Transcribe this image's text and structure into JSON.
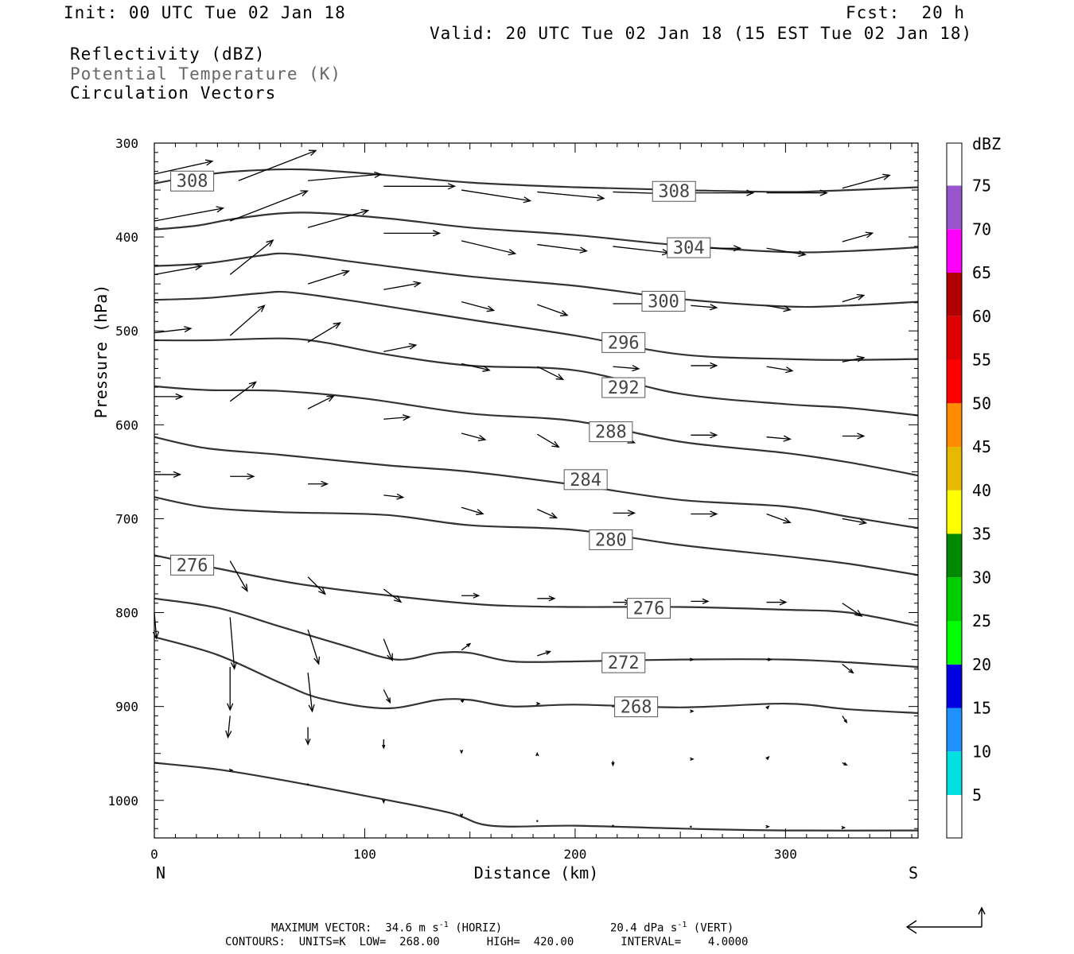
{
  "header": {
    "init": "Init: 00 UTC Tue 02 Jan 18",
    "fcst": "Fcst:  20 h",
    "valid": "Valid: 20 UTC Tue 02 Jan 18 (15 EST Tue 02 Jan 18)",
    "fields": [
      "Reflectivity (dBZ)",
      "Potential Temperature (K)",
      "Circulation Vectors"
    ]
  },
  "colors": {
    "contour": "#333333",
    "legend_field_gray": "#666666",
    "colorbar": [
      "#ffffff",
      "#00e0e0",
      "#1e90ff",
      "#0000e0",
      "#00ff00",
      "#00cc00",
      "#008800",
      "#ffff00",
      "#e6b800",
      "#ff8c00",
      "#ff0000",
      "#dd0000",
      "#b00000",
      "#ff00ff",
      "#9955cc",
      "#ffffff"
    ]
  },
  "footer": {
    "max_vector": "MAXIMUM VECTOR:  34.6 m s",
    "horiz": "(HORIZ)",
    "vert_val": "20.4 dPa s",
    "vert": "(VERT)",
    "contours": "CONTOURS:  UNITS=K  LOW=  268.00       HIGH=  420.00       INTERVAL=    4.0000"
  },
  "chart_data": {
    "type": "cross-section",
    "xlabel": "Distance (km)",
    "ylabel": "Pressure (hPa)",
    "xlim": [
      0,
      363
    ],
    "ylim": [
      300,
      1040
    ],
    "x_ticks": [
      0,
      100,
      200,
      300
    ],
    "y_ticks": [
      300,
      400,
      500,
      600,
      700,
      800,
      900,
      1000
    ],
    "left_label": "N",
    "right_label": "S",
    "colorbar": {
      "unit": "dBZ",
      "levels": [
        5,
        10,
        15,
        20,
        25,
        30,
        35,
        40,
        45,
        50,
        55,
        60,
        65,
        70,
        75
      ]
    },
    "contour_labels": [
      {
        "value": "308",
        "x": 18,
        "p": 340
      },
      {
        "value": "308",
        "x": 247,
        "p": 351
      },
      {
        "value": "304",
        "x": 254,
        "p": 411
      },
      {
        "value": "300",
        "x": 242,
        "p": 468
      },
      {
        "value": "296",
        "x": 223,
        "p": 512
      },
      {
        "value": "292",
        "x": 223,
        "p": 560
      },
      {
        "value": "288",
        "x": 217,
        "p": 607
      },
      {
        "value": "284",
        "x": 205,
        "p": 658
      },
      {
        "value": "280",
        "x": 217,
        "p": 722
      },
      {
        "value": "276",
        "x": 18,
        "p": 749
      },
      {
        "value": "276",
        "x": 235,
        "p": 795
      },
      {
        "value": "272",
        "x": 223,
        "p": 853
      },
      {
        "value": "268",
        "x": 229,
        "p": 900
      }
    ],
    "isentropes": [
      {
        "points": [
          [
            0,
            343
          ],
          [
            20,
            335
          ],
          [
            40,
            330
          ],
          [
            70,
            328
          ],
          [
            110,
            334
          ],
          [
            150,
            342
          ],
          [
            200,
            347
          ],
          [
            250,
            350
          ],
          [
            300,
            352
          ],
          [
            330,
            350
          ],
          [
            363,
            347
          ]
        ]
      },
      {
        "points": [
          [
            0,
            392
          ],
          [
            20,
            388
          ],
          [
            40,
            380
          ],
          [
            70,
            374
          ],
          [
            110,
            380
          ],
          [
            150,
            390
          ],
          [
            200,
            398
          ],
          [
            250,
            409
          ],
          [
            300,
            416
          ],
          [
            330,
            415
          ],
          [
            363,
            411
          ]
        ]
      },
      {
        "points": [
          [
            0,
            431
          ],
          [
            25,
            428
          ],
          [
            50,
            420
          ],
          [
            65,
            418
          ],
          [
            100,
            428
          ],
          [
            150,
            442
          ],
          [
            200,
            452
          ],
          [
            250,
            466
          ],
          [
            300,
            474
          ],
          [
            330,
            473
          ],
          [
            363,
            469
          ]
        ]
      },
      {
        "points": [
          [
            0,
            467
          ],
          [
            25,
            465
          ],
          [
            50,
            460
          ],
          [
            65,
            459
          ],
          [
            100,
            470
          ],
          [
            150,
            488
          ],
          [
            200,
            505
          ],
          [
            250,
            525
          ],
          [
            300,
            530
          ],
          [
            330,
            531
          ],
          [
            363,
            530
          ]
        ]
      },
      {
        "points": [
          [
            0,
            510
          ],
          [
            25,
            510
          ],
          [
            60,
            508
          ],
          [
            80,
            512
          ],
          [
            110,
            525
          ],
          [
            150,
            537
          ],
          [
            200,
            542
          ],
          [
            250,
            567
          ],
          [
            300,
            578
          ],
          [
            330,
            582
          ],
          [
            363,
            590
          ]
        ]
      },
      {
        "points": [
          [
            0,
            559
          ],
          [
            25,
            563
          ],
          [
            60,
            564
          ],
          [
            100,
            572
          ],
          [
            150,
            588
          ],
          [
            200,
            596
          ],
          [
            250,
            618
          ],
          [
            300,
            630
          ],
          [
            330,
            640
          ],
          [
            363,
            654
          ]
        ]
      },
      {
        "points": [
          [
            0,
            613
          ],
          [
            25,
            625
          ],
          [
            60,
            632
          ],
          [
            110,
            643
          ],
          [
            150,
            650
          ],
          [
            200,
            664
          ],
          [
            250,
            680
          ],
          [
            300,
            687
          ],
          [
            330,
            698
          ],
          [
            363,
            710
          ]
        ]
      },
      {
        "points": [
          [
            0,
            677
          ],
          [
            25,
            688
          ],
          [
            60,
            693
          ],
          [
            110,
            696
          ],
          [
            150,
            707
          ],
          [
            200,
            712
          ],
          [
            250,
            728
          ],
          [
            300,
            740
          ],
          [
            330,
            748
          ],
          [
            363,
            760
          ]
        ]
      },
      {
        "points": [
          [
            0,
            739
          ],
          [
            30,
            753
          ],
          [
            70,
            770
          ],
          [
            120,
            784
          ],
          [
            160,
            792
          ],
          [
            200,
            794
          ],
          [
            250,
            794
          ],
          [
            300,
            797
          ],
          [
            330,
            800
          ],
          [
            363,
            814
          ]
        ]
      },
      {
        "points": [
          [
            0,
            785
          ],
          [
            30,
            795
          ],
          [
            60,
            815
          ],
          [
            90,
            835
          ],
          [
            115,
            850
          ],
          [
            135,
            843
          ],
          [
            150,
            843
          ],
          [
            170,
            852
          ],
          [
            200,
            852
          ],
          [
            250,
            850
          ],
          [
            300,
            850
          ],
          [
            330,
            853
          ],
          [
            363,
            858
          ]
        ]
      },
      {
        "points": [
          [
            0,
            826
          ],
          [
            30,
            845
          ],
          [
            60,
            875
          ],
          [
            80,
            892
          ],
          [
            110,
            902
          ],
          [
            135,
            893
          ],
          [
            150,
            893
          ],
          [
            170,
            900
          ],
          [
            200,
            898
          ],
          [
            250,
            901
          ],
          [
            300,
            897
          ],
          [
            330,
            903
          ],
          [
            363,
            907
          ]
        ]
      },
      {
        "points": [
          [
            0,
            960
          ],
          [
            30,
            967
          ],
          [
            60,
            978
          ],
          [
            100,
            995
          ],
          [
            140,
            1013
          ],
          [
            160,
            1027
          ],
          [
            200,
            1027
          ],
          [
            250,
            1030
          ],
          [
            300,
            1032
          ],
          [
            363,
            1032
          ]
        ]
      }
    ],
    "vectors": [
      {
        "x": 0,
        "p": 333,
        "u": 27,
        "w": -6
      },
      {
        "x": 40,
        "p": 340,
        "u": 36,
        "w": -14
      },
      {
        "x": 73,
        "p": 340,
        "u": 34,
        "w": -3
      },
      {
        "x": 109,
        "p": 346,
        "u": 33,
        "w": 0
      },
      {
        "x": 146,
        "p": 350,
        "u": 32,
        "w": 5
      },
      {
        "x": 182,
        "p": 352,
        "u": 31,
        "w": 3
      },
      {
        "x": 218,
        "p": 352,
        "u": 30,
        "w": 1
      },
      {
        "x": 255,
        "p": 353,
        "u": 29,
        "w": 0
      },
      {
        "x": 291,
        "p": 353,
        "u": 28,
        "w": 0
      },
      {
        "x": 327,
        "p": 348,
        "u": 22,
        "w": -6
      },
      {
        "x": 0,
        "p": 383,
        "u": 32,
        "w": -6
      },
      {
        "x": 36,
        "p": 383,
        "u": 36,
        "w": -14
      },
      {
        "x": 73,
        "p": 390,
        "u": 28,
        "w": -8
      },
      {
        "x": 109,
        "p": 396,
        "u": 26,
        "w": 0
      },
      {
        "x": 146,
        "p": 404,
        "u": 25,
        "w": 6
      },
      {
        "x": 182,
        "p": 408,
        "u": 23,
        "w": 3
      },
      {
        "x": 218,
        "p": 410,
        "u": 26,
        "w": 3
      },
      {
        "x": 255,
        "p": 412,
        "u": 23,
        "w": 0
      },
      {
        "x": 291,
        "p": 412,
        "u": 18,
        "w": 3
      },
      {
        "x": 327,
        "p": 405,
        "u": 14,
        "w": -4
      },
      {
        "x": 0,
        "p": 440,
        "u": 22,
        "w": -4
      },
      {
        "x": 36,
        "p": 440,
        "u": 20,
        "w": -16
      },
      {
        "x": 73,
        "p": 450,
        "u": 19,
        "w": -6
      },
      {
        "x": 109,
        "p": 456,
        "u": 17,
        "w": -3
      },
      {
        "x": 146,
        "p": 469,
        "u": 15,
        "w": 4
      },
      {
        "x": 182,
        "p": 472,
        "u": 14,
        "w": 5
      },
      {
        "x": 218,
        "p": 471,
        "u": 18,
        "w": 0
      },
      {
        "x": 255,
        "p": 473,
        "u": 12,
        "w": 1
      },
      {
        "x": 291,
        "p": 473,
        "u": 11,
        "w": 2
      },
      {
        "x": 327,
        "p": 469,
        "u": 10,
        "w": -3
      },
      {
        "x": 0,
        "p": 502,
        "u": 17,
        "w": -2
      },
      {
        "x": 36,
        "p": 505,
        "u": 16,
        "w": -14
      },
      {
        "x": 73,
        "p": 512,
        "u": 15,
        "w": -9
      },
      {
        "x": 109,
        "p": 522,
        "u": 15,
        "w": -3
      },
      {
        "x": 146,
        "p": 535,
        "u": 13,
        "w": 3
      },
      {
        "x": 182,
        "p": 538,
        "u": 12,
        "w": 6
      },
      {
        "x": 218,
        "p": 538,
        "u": 12,
        "w": 1
      },
      {
        "x": 255,
        "p": 537,
        "u": 12,
        "w": 0
      },
      {
        "x": 291,
        "p": 538,
        "u": 12,
        "w": 2
      },
      {
        "x": 327,
        "p": 533,
        "u": 10,
        "w": -2
      },
      {
        "x": 0,
        "p": 570,
        "u": 13,
        "w": 0
      },
      {
        "x": 36,
        "p": 575,
        "u": 12,
        "w": -9
      },
      {
        "x": 73,
        "p": 583,
        "u": 12,
        "w": -6
      },
      {
        "x": 109,
        "p": 594,
        "u": 12,
        "w": -1
      },
      {
        "x": 146,
        "p": 609,
        "u": 11,
        "w": 3
      },
      {
        "x": 182,
        "p": 610,
        "u": 10,
        "w": 6
      },
      {
        "x": 218,
        "p": 610,
        "u": 10,
        "w": 4
      },
      {
        "x": 255,
        "p": 611,
        "u": 12,
        "w": 0
      },
      {
        "x": 291,
        "p": 613,
        "u": 11,
        "w": 1
      },
      {
        "x": 327,
        "p": 612,
        "u": 10,
        "w": 0
      },
      {
        "x": 0,
        "p": 653,
        "u": 12,
        "w": 0
      },
      {
        "x": 36,
        "p": 655,
        "u": 11,
        "w": 0
      },
      {
        "x": 73,
        "p": 663,
        "u": 9,
        "w": 0
      },
      {
        "x": 109,
        "p": 675,
        "u": 9,
        "w": 1
      },
      {
        "x": 146,
        "p": 688,
        "u": 10,
        "w": 3
      },
      {
        "x": 182,
        "p": 690,
        "u": 9,
        "w": 4
      },
      {
        "x": 218,
        "p": 694,
        "u": 10,
        "w": 0
      },
      {
        "x": 255,
        "p": 695,
        "u": 12,
        "w": 0
      },
      {
        "x": 291,
        "p": 695,
        "u": 11,
        "w": 4
      },
      {
        "x": 327,
        "p": 700,
        "u": 11,
        "w": 2
      },
      {
        "x": 36,
        "p": 745,
        "u": 8,
        "w": 14
      },
      {
        "x": 73,
        "p": 762,
        "u": 8,
        "w": 8
      },
      {
        "x": 109,
        "p": 775,
        "u": 8,
        "w": 6
      },
      {
        "x": 146,
        "p": 782,
        "u": 8,
        "w": 0
      },
      {
        "x": 182,
        "p": 785,
        "u": 8,
        "w": 0
      },
      {
        "x": 218,
        "p": 789,
        "u": 8,
        "w": 0
      },
      {
        "x": 255,
        "p": 788,
        "u": 8,
        "w": 0
      },
      {
        "x": 291,
        "p": 789,
        "u": 9,
        "w": 0
      },
      {
        "x": 327,
        "p": 790,
        "u": 9,
        "w": 6
      },
      {
        "x": 0,
        "p": 800,
        "u": 1,
        "w": 12
      },
      {
        "x": 36,
        "p": 805,
        "u": 2,
        "w": 24
      },
      {
        "x": 73,
        "p": 818,
        "u": 5,
        "w": 16
      },
      {
        "x": 109,
        "p": 828,
        "u": 4,
        "w": 10
      },
      {
        "x": 146,
        "p": 840,
        "u": 4,
        "w": -3
      },
      {
        "x": 182,
        "p": 846,
        "u": 6,
        "w": -2
      },
      {
        "x": 218,
        "p": 853,
        "u": 6,
        "w": -2
      },
      {
        "x": 255,
        "p": 850,
        "u": 1,
        "w": 0
      },
      {
        "x": 291,
        "p": 850,
        "u": 2,
        "w": 0
      },
      {
        "x": 327,
        "p": 855,
        "u": 5,
        "w": 4
      },
      {
        "x": 36,
        "p": 858,
        "u": 0,
        "w": 20
      },
      {
        "x": 73,
        "p": 864,
        "u": 2,
        "w": 18
      },
      {
        "x": 109,
        "p": 882,
        "u": 3,
        "w": 6
      },
      {
        "x": 146,
        "p": 895,
        "u": 1,
        "w": -1
      },
      {
        "x": 182,
        "p": 897,
        "u": 1,
        "w": 0
      },
      {
        "x": 218,
        "p": 900,
        "u": 0,
        "w": 0
      },
      {
        "x": 255,
        "p": 905,
        "u": 1,
        "w": 0
      },
      {
        "x": 291,
        "p": 902,
        "u": 1,
        "w": -1
      },
      {
        "x": 327,
        "p": 910,
        "u": 2,
        "w": 3
      },
      {
        "x": 36,
        "p": 910,
        "u": -1,
        "w": 10
      },
      {
        "x": 73,
        "p": 922,
        "u": 0,
        "w": 8
      },
      {
        "x": 109,
        "p": 935,
        "u": 0,
        "w": 4
      },
      {
        "x": 146,
        "p": 947,
        "u": 0,
        "w": 1
      },
      {
        "x": 182,
        "p": 952,
        "u": 0,
        "w": -1
      },
      {
        "x": 218,
        "p": 958,
        "u": 0,
        "w": 2
      },
      {
        "x": 255,
        "p": 956,
        "u": 1,
        "w": 0
      },
      {
        "x": 291,
        "p": 956,
        "u": 1,
        "w": -1
      },
      {
        "x": 327,
        "p": 960,
        "u": 2,
        "w": 1
      },
      {
        "x": 36,
        "p": 968,
        "u": 1,
        "w": 0
      },
      {
        "x": 73,
        "p": 983,
        "u": 0,
        "w": 0
      },
      {
        "x": 109,
        "p": 1000,
        "u": 0,
        "w": 1
      },
      {
        "x": 146,
        "p": 1015,
        "u": 0,
        "w": 1
      },
      {
        "x": 182,
        "p": 1022,
        "u": 0,
        "w": 0
      },
      {
        "x": 218,
        "p": 1027,
        "u": 0,
        "w": 0
      },
      {
        "x": 255,
        "p": 1028,
        "u": 0,
        "w": 0
      },
      {
        "x": 291,
        "p": 1028,
        "u": 1,
        "w": 0
      },
      {
        "x": 327,
        "p": 1029,
        "u": 1,
        "w": 0
      }
    ]
  }
}
